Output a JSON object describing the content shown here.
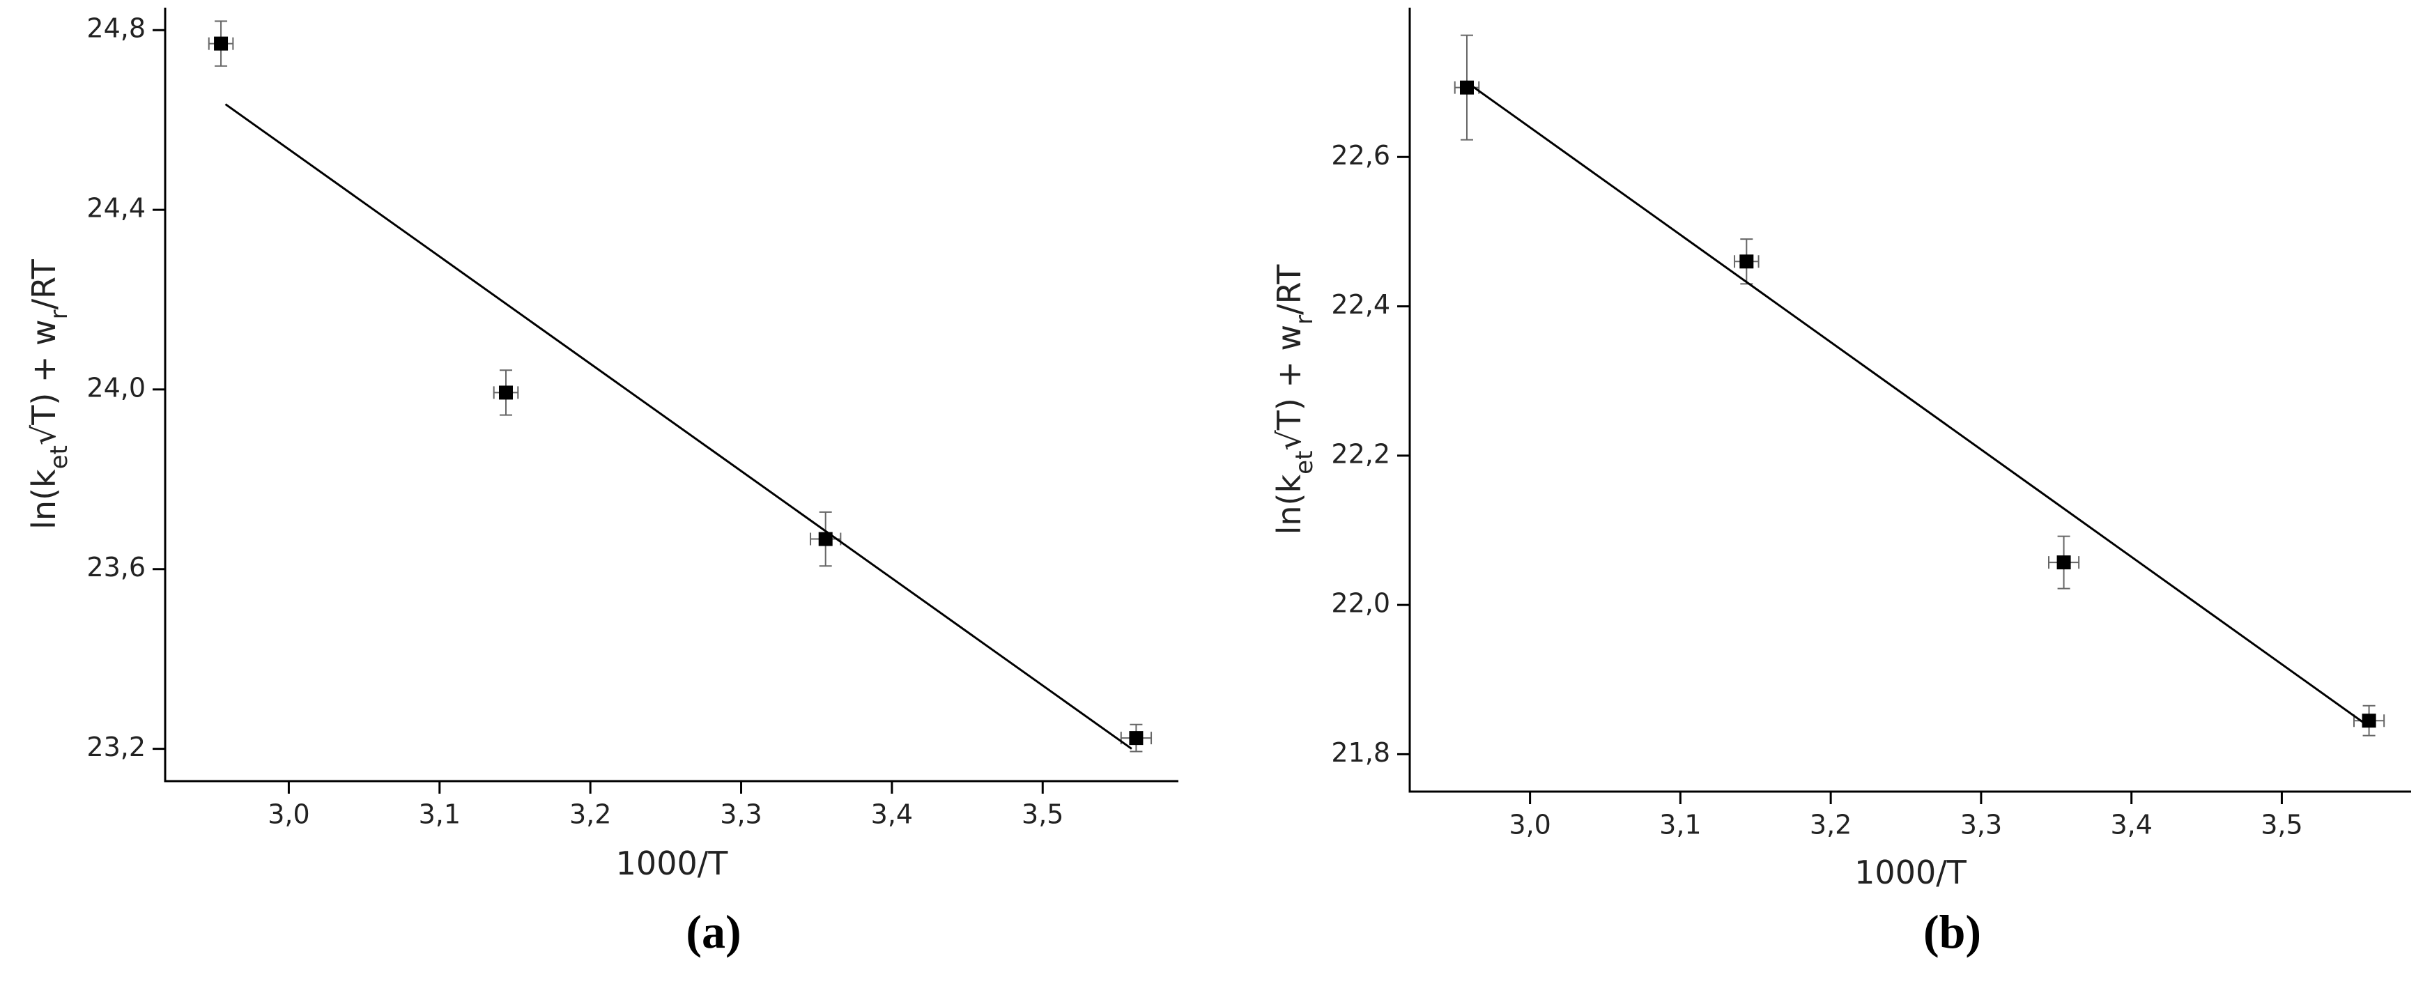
{
  "chart_data": [
    {
      "type": "scatter",
      "panel_label": "(a)",
      "xlabel": "1000/T",
      "ylabel": {
        "parts": [
          "ln(k",
          "et",
          "√T) + w",
          "r",
          "/RT"
        ]
      },
      "xlim": [
        2.918,
        3.59
      ],
      "ylim": [
        23.128,
        24.85
      ],
      "xticks": [
        {
          "value": 3.0,
          "label": "3,0"
        },
        {
          "value": 3.1,
          "label": "3,1"
        },
        {
          "value": 3.2,
          "label": "3,2"
        },
        {
          "value": 3.3,
          "label": "3,3"
        },
        {
          "value": 3.4,
          "label": "3,4"
        },
        {
          "value": 3.5,
          "label": "3,5"
        }
      ],
      "yticks": [
        {
          "value": 23.2,
          "label": "23,2"
        },
        {
          "value": 23.6,
          "label": "23,6"
        },
        {
          "value": 24.0,
          "label": "24,0"
        },
        {
          "value": 24.4,
          "label": "24,4"
        },
        {
          "value": 24.8,
          "label": "24,8"
        }
      ],
      "color": "#000000",
      "series": [
        {
          "x": [
            2.955,
            3.144,
            3.356,
            3.562
          ],
          "values": [
            24.77,
            23.993,
            23.667,
            23.224
          ],
          "xerr": [
            0.008,
            0.008,
            0.01,
            0.01
          ],
          "yerr": [
            0.05,
            0.05,
            0.06,
            0.03
          ]
        }
      ],
      "fit": {
        "x": [
          2.958,
          3.559
        ],
        "values": [
          24.635,
          23.2
        ]
      }
    },
    {
      "type": "scatter",
      "panel_label": "(b)",
      "xlabel": "1000/T",
      "ylabel": {
        "parts": [
          "ln(k",
          "et",
          "√T) + w",
          "r",
          "/RT"
        ]
      },
      "xlim": [
        2.92,
        3.586
      ],
      "ylim": [
        21.75,
        22.8
      ],
      "xticks": [
        {
          "value": 3.0,
          "label": "3,0"
        },
        {
          "value": 3.1,
          "label": "3,1"
        },
        {
          "value": 3.2,
          "label": "3,2"
        },
        {
          "value": 3.3,
          "label": "3,3"
        },
        {
          "value": 3.4,
          "label": "3,4"
        },
        {
          "value": 3.5,
          "label": "3,5"
        }
      ],
      "yticks": [
        {
          "value": 21.8,
          "label": "21,8"
        },
        {
          "value": 22.0,
          "label": "22,0"
        },
        {
          "value": 22.2,
          "label": "22,2"
        },
        {
          "value": 22.4,
          "label": "22,4"
        },
        {
          "value": 22.6,
          "label": "22,6"
        }
      ],
      "color": "#000000",
      "series": [
        {
          "x": [
            2.958,
            3.144,
            3.355,
            3.558
          ],
          "values": [
            22.693,
            22.46,
            22.057,
            21.845
          ],
          "xerr": [
            0.008,
            0.008,
            0.01,
            0.01
          ],
          "yerr": [
            0.07,
            0.03,
            0.035,
            0.02
          ]
        }
      ],
      "fit": {
        "x": [
          2.958,
          3.556
        ],
        "values": [
          22.7,
          21.84
        ]
      }
    }
  ]
}
